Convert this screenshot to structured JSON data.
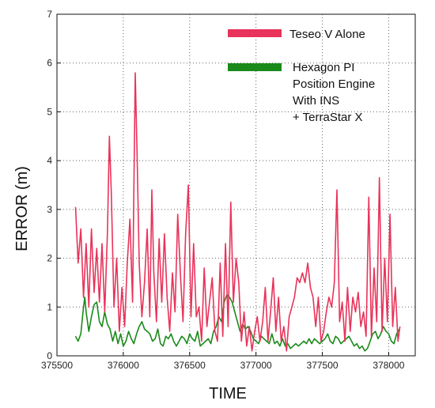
{
  "chart_data": {
    "type": "line",
    "title": "",
    "xlabel": "TIME",
    "ylabel": "ERROR (m)",
    "xlim": [
      375500,
      378200
    ],
    "ylim": [
      0,
      7
    ],
    "x_ticks": [
      375500,
      376000,
      376500,
      377000,
      377500,
      378000
    ],
    "x_tick_labels": [
      "375500",
      "376000",
      "376500",
      "377000",
      "377500",
      "378000"
    ],
    "y_ticks": [
      0,
      1,
      2,
      3,
      4,
      5,
      6,
      7
    ],
    "y_tick_labels": [
      "0",
      "1",
      "2",
      "3",
      "4",
      "5",
      "6",
      "7"
    ],
    "grid": true,
    "legend_position": "top-right",
    "series": [
      {
        "name": "Teseo V Alone",
        "color": "#e8335a",
        "x": [
          375640,
          375660,
          375680,
          375700,
          375720,
          375740,
          375760,
          375780,
          375800,
          375820,
          375840,
          375860,
          375880,
          375895,
          375910,
          375930,
          375950,
          375970,
          375990,
          376010,
          376030,
          376050,
          376070,
          376090,
          376105,
          376120,
          376140,
          376160,
          376180,
          376200,
          376215,
          376230,
          376250,
          376270,
          376290,
          376310,
          376330,
          376350,
          376370,
          376390,
          376410,
          376430,
          376450,
          376470,
          376490,
          376510,
          376530,
          376550,
          376570,
          376590,
          376610,
          376630,
          376650,
          376670,
          376690,
          376710,
          376730,
          376750,
          376770,
          376790,
          376810,
          376830,
          376850,
          376870,
          376890,
          376910,
          376930,
          376950,
          376970,
          376990,
          377010,
          377030,
          377050,
          377070,
          377090,
          377110,
          377130,
          377150,
          377170,
          377190,
          377210,
          377230,
          377250,
          377270,
          377290,
          377310,
          377330,
          377350,
          377370,
          377390,
          377410,
          377430,
          377450,
          377470,
          377490,
          377510,
          377530,
          377550,
          377570,
          377590,
          377610,
          377630,
          377650,
          377670,
          377690,
          377710,
          377730,
          377750,
          377770,
          377790,
          377810,
          377830,
          377850,
          377870,
          377890,
          377910,
          377930,
          377950,
          377970,
          377990,
          378010,
          378030,
          378050,
          378070,
          378085
        ],
        "values": [
          3.05,
          1.9,
          2.6,
          1.2,
          2.3,
          1.0,
          2.6,
          1.3,
          2.2,
          1.1,
          2.3,
          0.9,
          2.5,
          4.5,
          3.3,
          1.0,
          2.0,
          0.5,
          1.4,
          0.6,
          1.9,
          2.8,
          1.1,
          5.8,
          4.0,
          1.9,
          0.8,
          1.5,
          2.6,
          0.8,
          3.4,
          1.7,
          0.7,
          2.4,
          1.1,
          2.5,
          1.2,
          0.5,
          1.7,
          0.9,
          2.9,
          1.7,
          0.7,
          2.5,
          3.5,
          0.8,
          2.3,
          0.8,
          1.0,
          0.3,
          1.8,
          0.6,
          1.1,
          1.6,
          0.5,
          0.3,
          1.9,
          0.4,
          2.3,
          0.6,
          3.15,
          1.1,
          2.0,
          1.5,
          0.3,
          0.9,
          0.2,
          0.6,
          0.1,
          0.5,
          0.8,
          0.3,
          0.7,
          1.4,
          0.3,
          0.9,
          1.6,
          0.5,
          1.2,
          0.3,
          0.6,
          0.1,
          0.8,
          1.0,
          1.2,
          1.6,
          1.5,
          1.7,
          1.5,
          1.9,
          1.4,
          1.2,
          0.6,
          1.2,
          0.3,
          0.5,
          0.9,
          1.2,
          1.0,
          1.5,
          3.4,
          0.7,
          1.1,
          0.3,
          1.4,
          0.5,
          1.2,
          0.9,
          1.3,
          0.6,
          0.9,
          0.4,
          3.25,
          0.4,
          1.8,
          0.7,
          3.65,
          0.5,
          2.0,
          0.7,
          2.9,
          0.6,
          1.4,
          0.3,
          0.6
        ]
      },
      {
        "name": "Hexagon PI Position Engine With INS + TerraStar X",
        "color": "#1a8a1a",
        "x": [
          375640,
          375660,
          375680,
          375700,
          375710,
          375720,
          375740,
          375760,
          375780,
          375800,
          375820,
          375840,
          375860,
          375880,
          375900,
          375920,
          375940,
          375960,
          375980,
          376000,
          376020,
          376040,
          376060,
          376080,
          376100,
          376120,
          376140,
          376160,
          376180,
          376200,
          376220,
          376240,
          376260,
          376280,
          376300,
          376320,
          376340,
          376360,
          376380,
          376400,
          376420,
          376440,
          376460,
          376480,
          376500,
          376520,
          376540,
          376560,
          376580,
          376600,
          376620,
          376640,
          376660,
          376680,
          376700,
          376720,
          376740,
          376760,
          376780,
          376800,
          376820,
          376840,
          376860,
          376880,
          376900,
          376920,
          376940,
          376960,
          376980,
          377000,
          377020,
          377040,
          377060,
          377080,
          377100,
          377120,
          377140,
          377160,
          377180,
          377200,
          377220,
          377240,
          377260,
          377280,
          377300,
          377320,
          377340,
          377360,
          377380,
          377400,
          377420,
          377440,
          377460,
          377480,
          377500,
          377520,
          377540,
          377560,
          377580,
          377600,
          377620,
          377640,
          377660,
          377680,
          377700,
          377720,
          377740,
          377760,
          377780,
          377800,
          377820,
          377840,
          377860,
          377880,
          377900,
          377920,
          377940,
          377960,
          377980,
          378000,
          378020,
          378040,
          378060,
          378080
        ],
        "values": [
          0.4,
          0.3,
          0.45,
          1.0,
          1.2,
          0.9,
          0.5,
          0.8,
          1.05,
          1.1,
          0.7,
          0.6,
          0.9,
          0.65,
          0.55,
          0.3,
          0.5,
          0.25,
          0.45,
          0.2,
          0.3,
          0.5,
          0.35,
          0.25,
          0.45,
          0.6,
          0.7,
          0.55,
          0.5,
          0.45,
          0.3,
          0.35,
          0.55,
          0.25,
          0.2,
          0.4,
          0.35,
          0.45,
          0.3,
          0.2,
          0.3,
          0.4,
          0.35,
          0.25,
          0.45,
          0.35,
          0.3,
          0.5,
          0.2,
          0.25,
          0.3,
          0.35,
          0.25,
          0.5,
          0.6,
          0.8,
          0.7,
          1.1,
          1.25,
          1.2,
          1.1,
          0.9,
          0.7,
          0.5,
          0.65,
          0.55,
          0.6,
          0.5,
          0.35,
          0.3,
          0.25,
          0.4,
          0.35,
          0.3,
          0.25,
          0.45,
          0.25,
          0.3,
          0.2,
          0.35,
          0.2,
          0.25,
          0.15,
          0.2,
          0.25,
          0.2,
          0.25,
          0.3,
          0.25,
          0.35,
          0.25,
          0.35,
          0.3,
          0.25,
          0.3,
          0.35,
          0.45,
          0.3,
          0.25,
          0.4,
          0.35,
          0.25,
          0.3,
          0.35,
          0.4,
          0.3,
          0.2,
          0.25,
          0.15,
          0.2,
          0.1,
          0.15,
          0.3,
          0.45,
          0.5,
          0.35,
          0.45,
          0.6,
          0.5,
          0.45,
          0.3,
          0.25,
          0.45,
          0.55
        ]
      }
    ]
  }
}
